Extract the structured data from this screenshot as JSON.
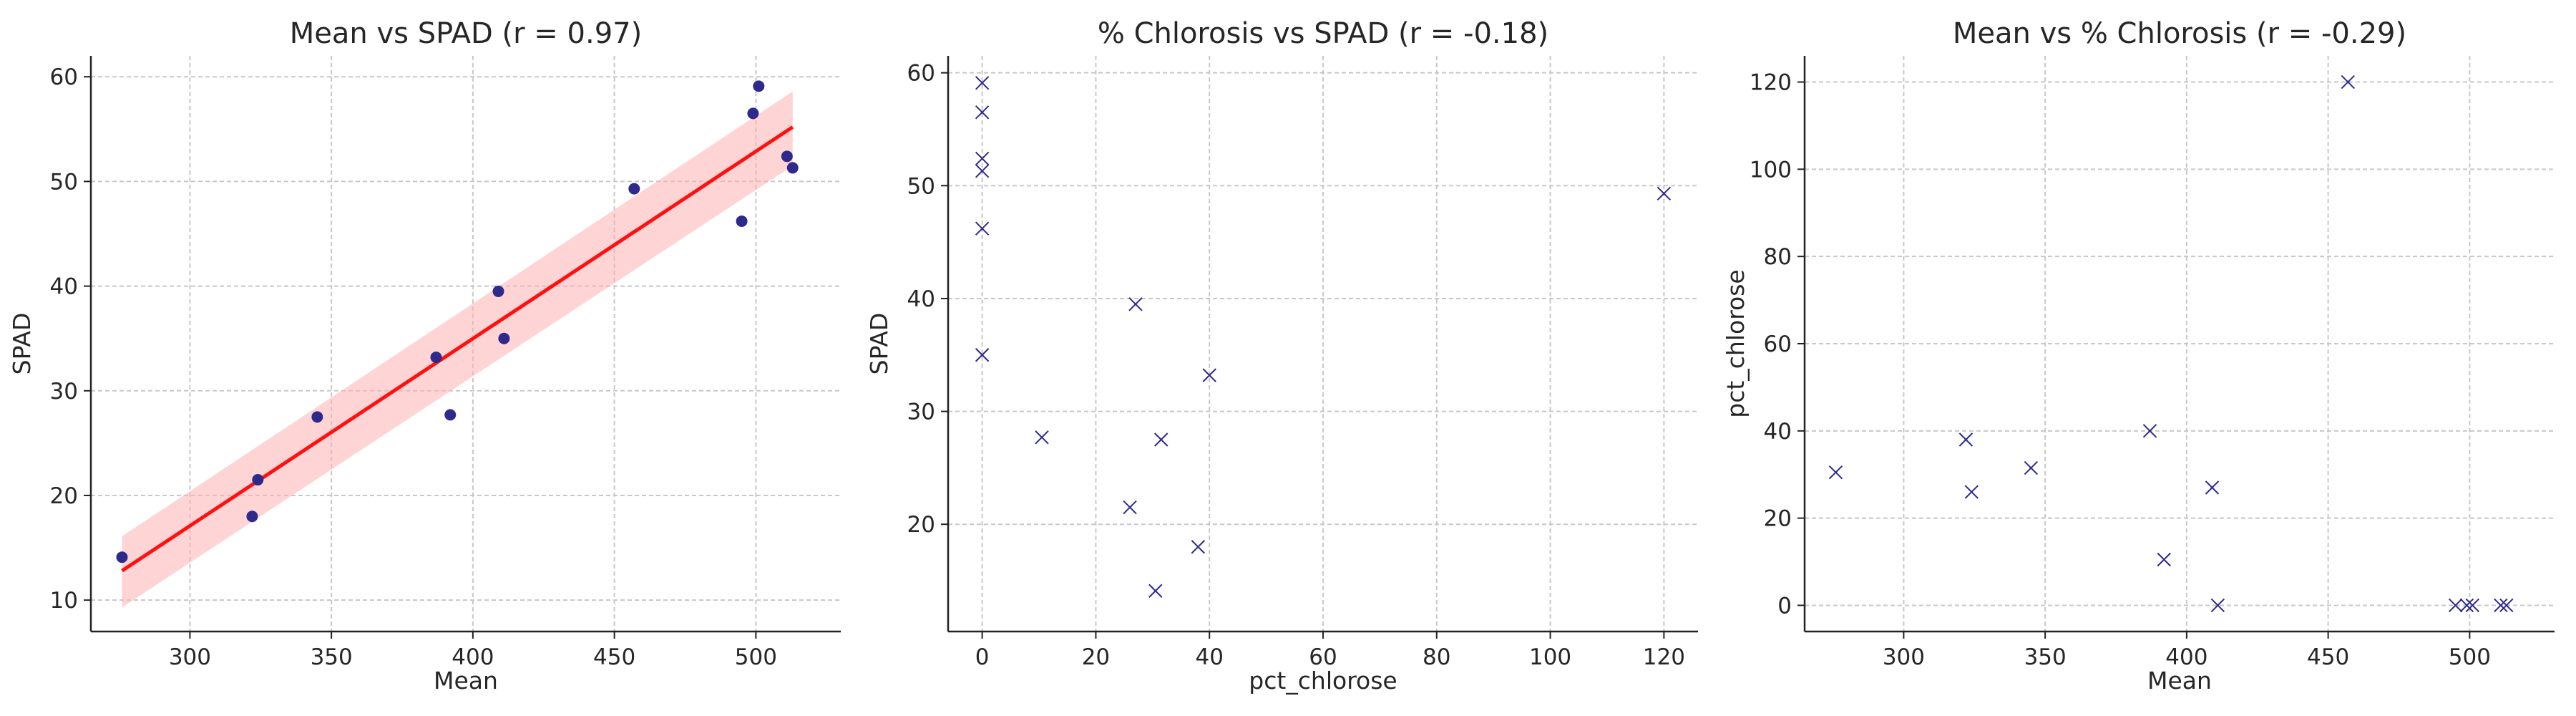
{
  "style": {
    "point_color": "#2e2a8c",
    "fit_color": "#ff1010",
    "band_color": "#ffb0b0",
    "grid_color": "#c8c8c8",
    "axis_color": "#222222",
    "background": "#ffffff"
  },
  "chart_data": [
    {
      "type": "scatter",
      "title": "Mean vs SPAD (r = 0.97)",
      "xlabel": "Mean",
      "ylabel": "SPAD",
      "xlim": [
        265,
        530
      ],
      "ylim": [
        7,
        62
      ],
      "xticks": [
        300,
        350,
        400,
        450,
        500
      ],
      "yticks": [
        10,
        20,
        30,
        40,
        50,
        60
      ],
      "marker": "circle",
      "grid": true,
      "x": [
        276,
        322,
        324,
        345,
        387,
        392,
        409,
        411,
        457,
        495,
        499,
        501,
        511,
        513
      ],
      "y": [
        14.1,
        18.0,
        21.5,
        27.5,
        33.2,
        27.7,
        39.5,
        35.0,
        49.3,
        46.2,
        56.5,
        59.1,
        52.4,
        51.3
      ],
      "fit": {
        "x_range": [
          276,
          513
        ],
        "y_range": [
          12.8,
          55.2
        ],
        "ci_low": [
          9.3,
          51.5
        ],
        "ci_high": [
          16.1,
          58.6
        ]
      }
    },
    {
      "type": "scatter",
      "title": "% Chlorosis vs SPAD (r = -0.18)",
      "xlabel": "pct_chlorose",
      "ylabel": "SPAD",
      "xlim": [
        -6,
        126
      ],
      "ylim": [
        10.5,
        61.5
      ],
      "xticks": [
        0,
        20,
        40,
        60,
        80,
        100,
        120
      ],
      "yticks": [
        20,
        30,
        40,
        50,
        60
      ],
      "marker": "x",
      "grid": true,
      "x": [
        0,
        0,
        0,
        0,
        0,
        0,
        27,
        40,
        10.5,
        31.5,
        26,
        38,
        30.5,
        120
      ],
      "y": [
        59.1,
        56.5,
        52.4,
        51.3,
        46.2,
        35.0,
        39.5,
        33.2,
        27.7,
        27.5,
        21.5,
        18.0,
        14.1,
        49.3
      ]
    },
    {
      "type": "scatter",
      "title": "Mean vs % Chlorosis (r = -0.29)",
      "xlabel": "Mean",
      "ylabel": "pct_chlorose",
      "xlim": [
        265,
        530
      ],
      "ylim": [
        -6,
        126
      ],
      "xticks": [
        300,
        350,
        400,
        450,
        500
      ],
      "yticks": [
        0,
        20,
        40,
        60,
        80,
        100,
        120
      ],
      "marker": "x",
      "grid": true,
      "x": [
        276,
        322,
        324,
        345,
        387,
        392,
        409,
        411,
        457,
        495,
        499,
        501,
        511,
        513
      ],
      "y": [
        30.5,
        38,
        26,
        31.5,
        40,
        10.5,
        27,
        0,
        120,
        0,
        0,
        0,
        0,
        0
      ]
    }
  ]
}
